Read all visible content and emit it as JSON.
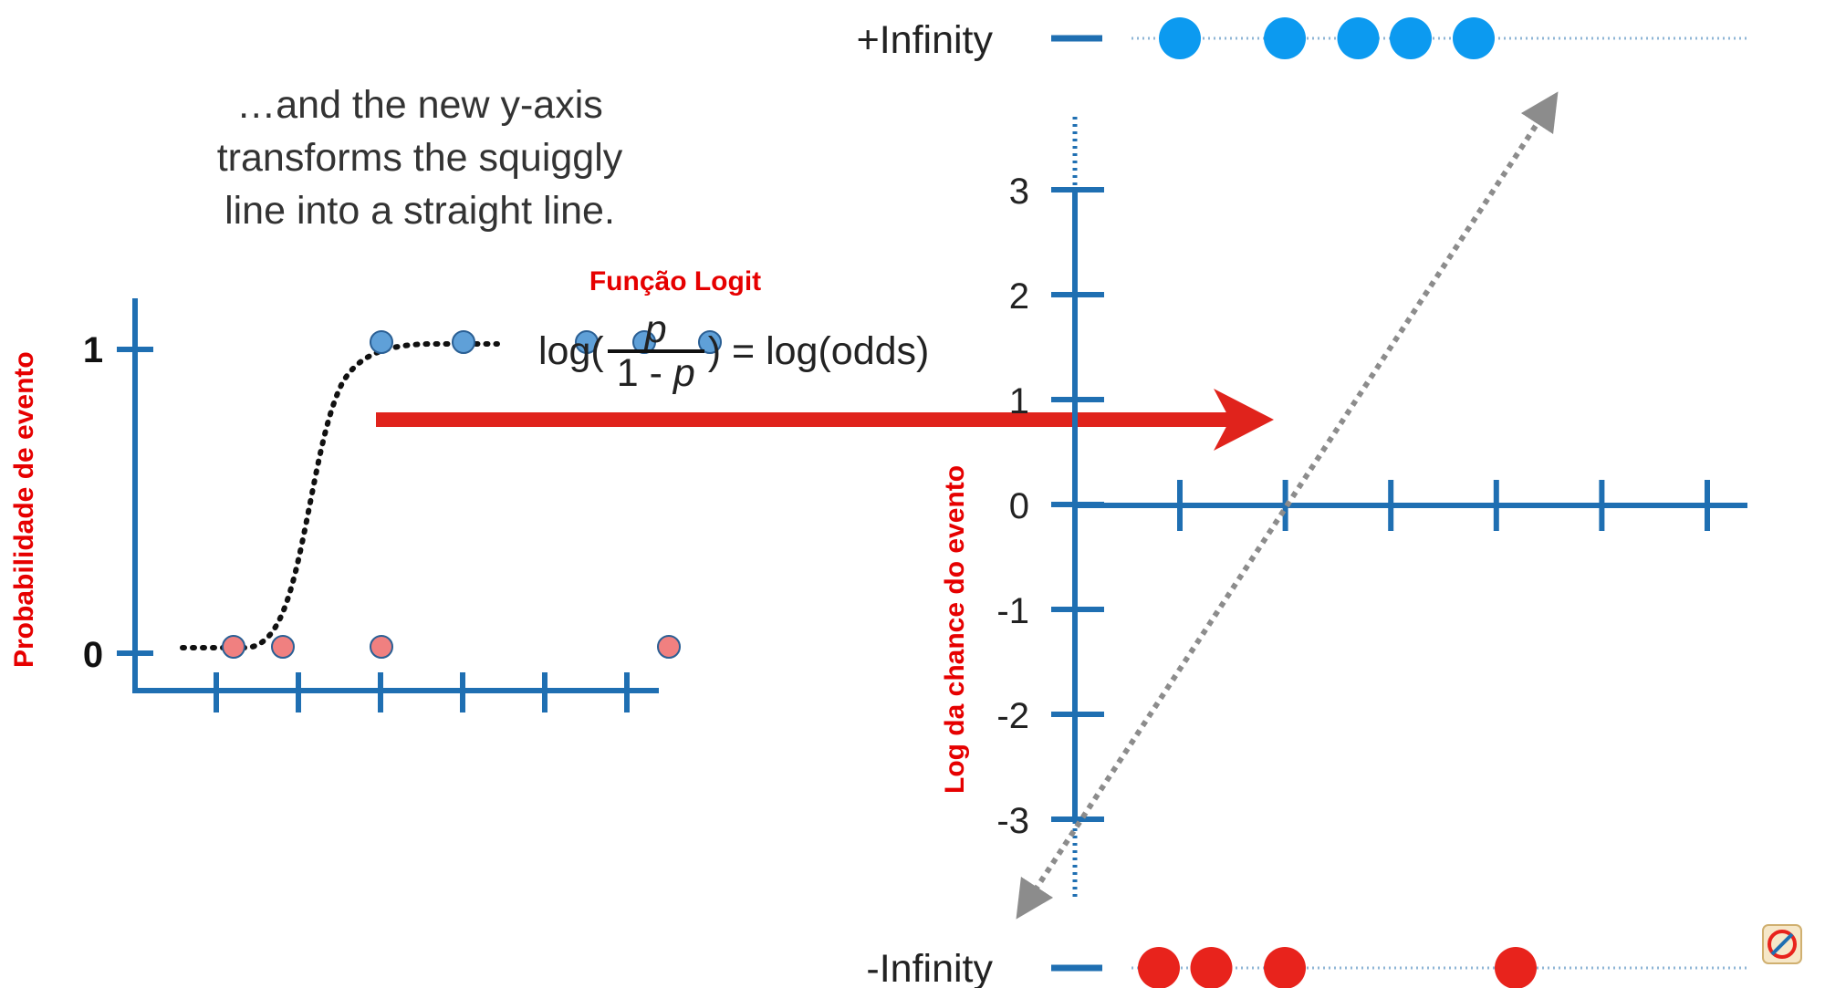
{
  "caption": [
    "…and the new y-axis",
    "transforms the squiggly",
    "line into a straight line."
  ],
  "logit": {
    "title": "Função Logit",
    "eq_prefix": "log(",
    "numerator": "p",
    "denominator_text": "1 - ",
    "denominator_var": "p",
    "eq_suffix": ") = log(odds)"
  },
  "colors": {
    "axis": "#1f6fb2",
    "red_label": "#e60000",
    "arrow": "#e0231c",
    "blue_point_left": "#5fa0d8",
    "red_point_left": "#f08080",
    "blue_point_right": "#0c9af0",
    "red_point_right": "#e8231c",
    "dashed_line": "#8c8c8c"
  },
  "left_plot": {
    "ylabel": "Probabilidade de evento",
    "ytick_labels": [
      "1",
      "0"
    ],
    "xtick_count": 6,
    "curve": "sigmoid, dotted black",
    "points_y1": [
      3,
      4,
      5.5,
      6.2,
      7
    ],
    "points_y0": [
      1.2,
      1.8,
      3,
      6.5
    ]
  },
  "right_plot": {
    "ylabel": "Log da chance do evento",
    "ytick_labels": [
      "3",
      "2",
      "1",
      "0",
      "-1",
      "-2",
      "-3"
    ],
    "xtick_count": 6,
    "top_label": "+Infinity",
    "bottom_label": "-Infinity",
    "points_plus_infinity": [
      1,
      2,
      2.7,
      3.2,
      3.8
    ],
    "points_minus_infinity": [
      0.8,
      1.3,
      2,
      4.2
    ],
    "line": "straight dashed line with arrows at both ends"
  },
  "icons": [
    "red-right-arrow-icon",
    "badge-logo-icon"
  ]
}
